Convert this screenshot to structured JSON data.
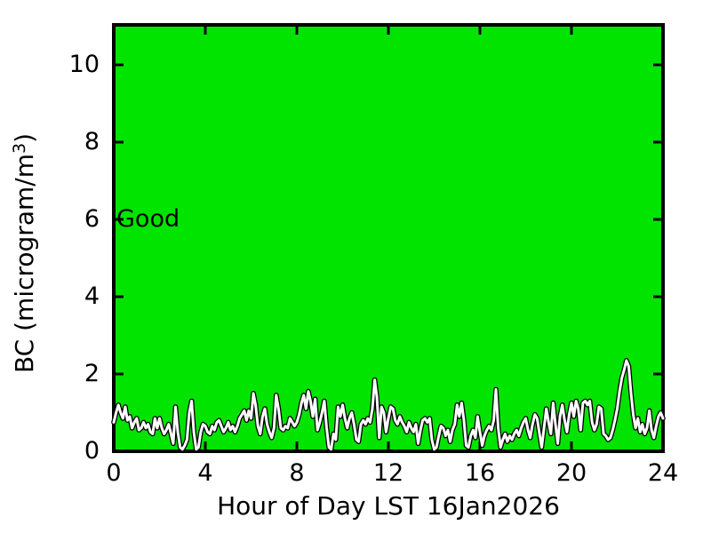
{
  "chart_data": {
    "type": "line",
    "title": "",
    "xlabel": "Hour of Day LST 16Jan2026",
    "ylabel": "BC (microgram/m³)",
    "ylabel_parts": {
      "prefix": "BC (microgram/m",
      "superscript": "3",
      "suffix": ")"
    },
    "band_label": "Good",
    "band_color": "#00e400",
    "line_color": "#ffffff",
    "line_outline_color": "#000000",
    "axis_color": "#000000",
    "xlim": [
      0,
      24
    ],
    "ylim": [
      0,
      11.03
    ],
    "grid": false,
    "legend": "none",
    "x_ticks": [
      0,
      4,
      8,
      12,
      16,
      20,
      24
    ],
    "x_tick_labels": [
      "0",
      "4",
      "8",
      "12",
      "16",
      "20",
      "24"
    ],
    "y_ticks": [
      0,
      2,
      4,
      6,
      8,
      10
    ],
    "y_tick_labels": [
      "0",
      "2",
      "4",
      "6",
      "8",
      "10"
    ],
    "series_name": "BC",
    "hours_start": 0,
    "hours_step": 0.1,
    "values": [
      0.75,
      1.0,
      1.2,
      1.0,
      0.85,
      1.15,
      0.8,
      0.9,
      0.6,
      0.75,
      0.85,
      0.55,
      0.6,
      0.75,
      0.6,
      0.7,
      0.5,
      0.45,
      0.85,
      0.6,
      0.85,
      0.6,
      0.45,
      0.55,
      0.7,
      0.45,
      0.2,
      1.15,
      0.5,
      0.1,
      0.05,
      0.15,
      0.3,
      1.0,
      1.3,
      0.5,
      0.05,
      0.1,
      0.5,
      0.7,
      0.65,
      0.5,
      0.45,
      0.65,
      0.55,
      0.75,
      0.8,
      0.65,
      0.5,
      0.6,
      0.75,
      0.55,
      0.65,
      0.5,
      0.65,
      0.85,
      0.95,
      1.05,
      0.8,
      1.05,
      0.85,
      1.5,
      1.2,
      0.65,
      0.45,
      0.9,
      1.1,
      0.7,
      0.5,
      0.35,
      0.6,
      1.45,
      1.1,
      0.6,
      0.55,
      0.65,
      0.6,
      0.85,
      0.75,
      0.65,
      0.75,
      0.95,
      1.25,
      1.45,
      1.1,
      1.55,
      1.3,
      0.9,
      1.35,
      0.55,
      0.75,
      1.0,
      1.3,
      0.6,
      0.1,
      0.05,
      0.45,
      0.3,
      1.15,
      0.9,
      1.2,
      0.85,
      0.6,
      0.85,
      1.0,
      0.7,
      0.3,
      0.25,
      0.7,
      0.8,
      0.7,
      0.85,
      0.75,
      1.1,
      1.85,
      1.4,
      0.35,
      1.15,
      1.0,
      0.5,
      0.85,
      1.15,
      1.1,
      0.8,
      0.7,
      0.9,
      0.75,
      0.65,
      0.5,
      0.75,
      0.6,
      0.5,
      0.7,
      0.2,
      0.55,
      0.8,
      0.85,
      0.75,
      0.85,
      0.3,
      0.05,
      0.1,
      0.4,
      0.65,
      0.6,
      0.4,
      0.55,
      0.25,
      0.55,
      0.7,
      1.2,
      0.9,
      1.25,
      0.8,
      0.15,
      0.1,
      0.4,
      0.55,
      0.35,
      0.9,
      0.5,
      0.15,
      0.4,
      0.55,
      0.65,
      0.55,
      0.8,
      1.6,
      0.6,
      0.1,
      0.3,
      0.45,
      0.25,
      0.4,
      0.3,
      0.45,
      0.55,
      0.4,
      0.6,
      0.75,
      0.85,
      0.55,
      0.35,
      0.7,
      0.95,
      0.85,
      0.45,
      0.1,
      0.6,
      1.1,
      0.75,
      0.45,
      1.25,
      0.7,
      0.2,
      0.9,
      1.2,
      0.8,
      0.5,
      0.95,
      1.25,
      0.9,
      1.3,
      1.1,
      0.55,
      1.25,
      1.3,
      1.2,
      1.3,
      0.75,
      0.55,
      0.7,
      1.15,
      1.1,
      0.45,
      0.4,
      0.3,
      0.35,
      0.55,
      0.8,
      1.1,
      1.55,
      1.9,
      2.1,
      2.35,
      2.2,
      1.5,
      0.95,
      0.6,
      0.85,
      0.5,
      0.7,
      0.45,
      0.6,
      1.05,
      0.55,
      0.35,
      0.65,
      0.9,
      1.0,
      0.85
    ]
  }
}
